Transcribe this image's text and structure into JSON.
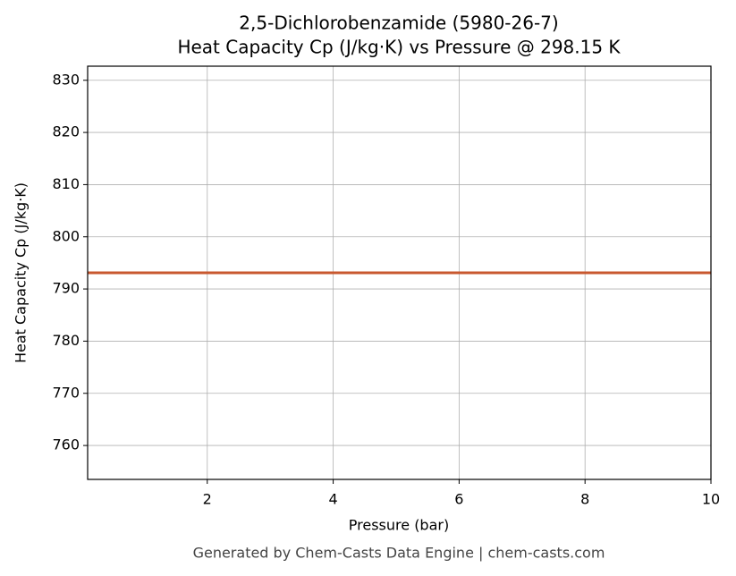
{
  "chart_data": {
    "type": "line",
    "title": "2,5-Dichlorobenzamide (5980-26-7)",
    "subtitle": "Heat Capacity Cp (J/kg·K) vs Pressure @ 298.15 K",
    "x_label": "Pressure (bar)",
    "y_label": "Heat Capacity Cp (J/kg·K)",
    "footer": "Generated by Chem-Casts Data Engine | chem-casts.com",
    "x": [
      0.1,
      10
    ],
    "series": [
      {
        "name": "Cp",
        "color": "#c8582f",
        "values": [
          793.1,
          793.1
        ]
      }
    ],
    "xlim": [
      0.1,
      10
    ],
    "ylim": [
      753.5,
      832.7
    ],
    "xticks": [
      2,
      4,
      6,
      8,
      10
    ],
    "yticks": [
      760,
      770,
      780,
      790,
      800,
      810,
      820,
      830
    ],
    "grid": true
  }
}
